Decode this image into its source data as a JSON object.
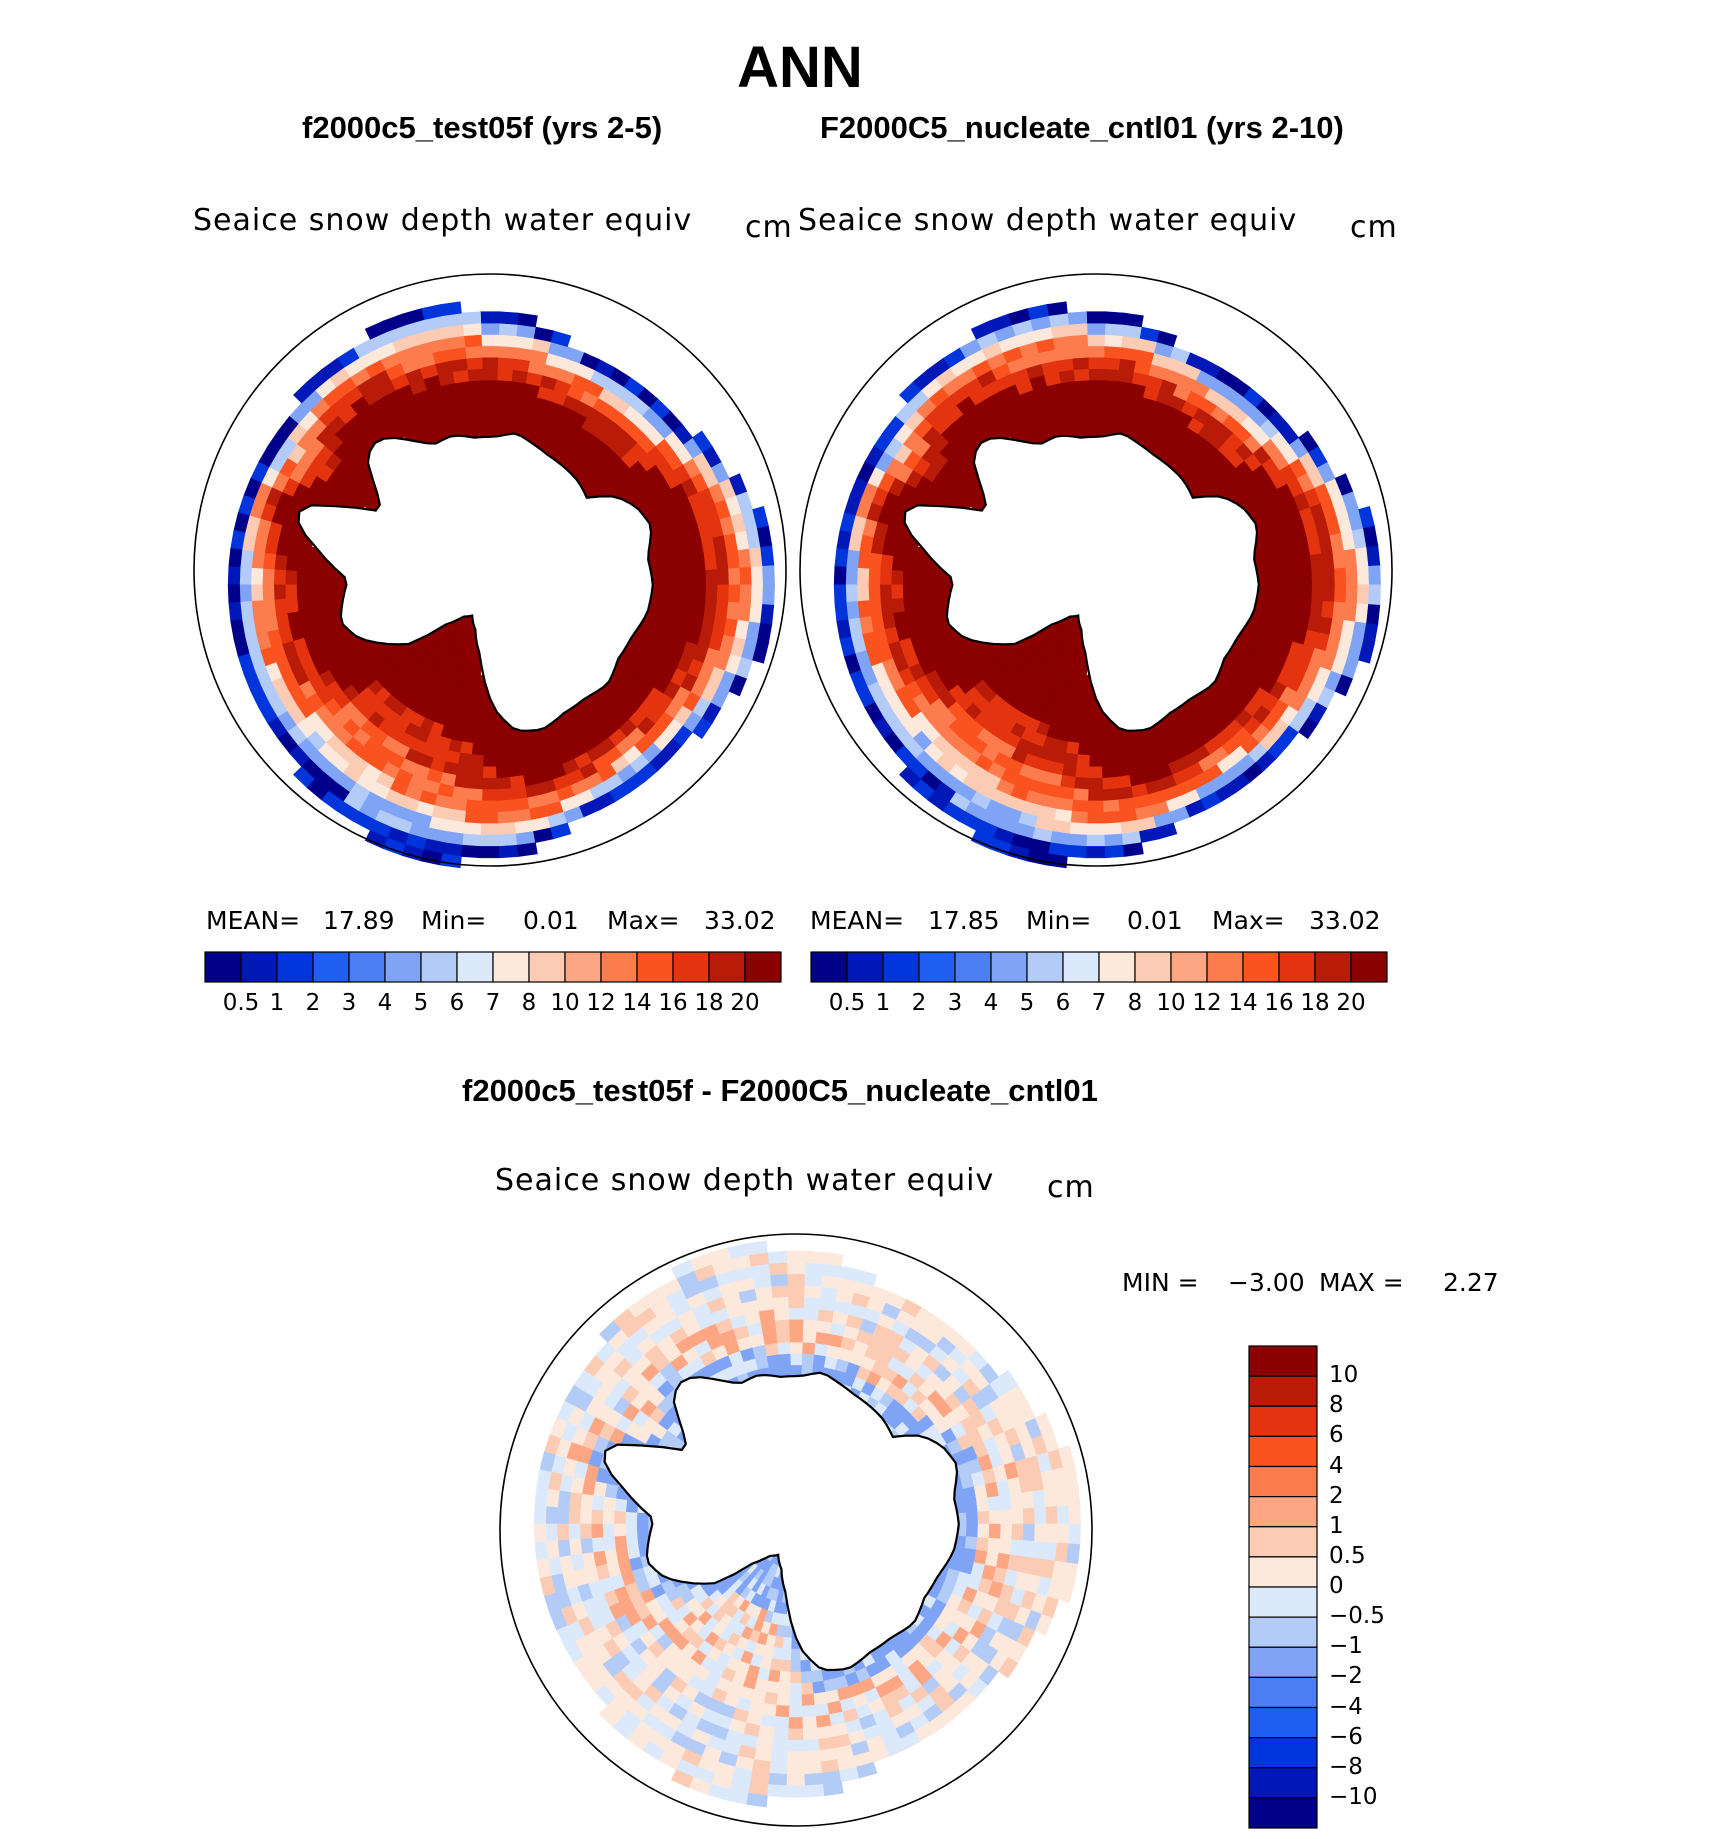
{
  "title": "ANN",
  "panels": [
    {
      "case_title": "f2000c5_test05f (yrs 2-5)",
      "variable": "Seaice snow depth water equiv",
      "units": "cm",
      "stats": {
        "mean_label": "MEAN=",
        "mean": "17.89",
        "min_label": "Min=",
        "min": "0.01",
        "max_label": "Max=",
        "max": "33.02"
      }
    },
    {
      "case_title": "F2000C5_nucleate_cntl01 (yrs 2-10)",
      "variable": "Seaice snow depth water equiv",
      "units": "cm",
      "stats": {
        "mean_label": "MEAN=",
        "mean": "17.85",
        "min_label": "Min=",
        "min": "0.01",
        "max_label": "Max=",
        "max": "33.02"
      }
    }
  ],
  "diff": {
    "case_title": "f2000c5_test05f - F2000C5_nucleate_cntl01",
    "variable": "Seaice snow depth water equiv",
    "units": "cm",
    "stats": {
      "min_label": "MIN =",
      "min": "−3.00",
      "max_label": "MAX =",
      "max": "2.27"
    }
  },
  "chart_data": [
    {
      "type": "heatmap",
      "projection": "south-polar-stereographic",
      "title": "f2000c5_test05f (yrs 2-5)",
      "variable": "Seaice snow depth water equiv",
      "units": "cm",
      "mean": 17.89,
      "min": 0.01,
      "max": 33.02,
      "colorbar": {
        "levels": [
          "0.5",
          "1",
          "2",
          "3",
          "4",
          "5",
          "6",
          "7",
          "8",
          "10",
          "12",
          "14",
          "16",
          "18",
          "20"
        ],
        "colors": [
          "#00008a",
          "#0018b8",
          "#0035dc",
          "#1f5ef0",
          "#4a7ef2",
          "#7fa4f5",
          "#b2cbf7",
          "#dce9fa",
          "#fde9dc",
          "#fccbb4",
          "#fca683",
          "#fc7c4e",
          "#fa5320",
          "#e4340f",
          "#b81c08",
          "#8b0000"
        ]
      }
    },
    {
      "type": "heatmap",
      "projection": "south-polar-stereographic",
      "title": "F2000C5_nucleate_cntl01 (yrs 2-10)",
      "variable": "Seaice snow depth water equiv",
      "units": "cm",
      "mean": 17.85,
      "min": 0.01,
      "max": 33.02,
      "colorbar": {
        "levels": [
          "0.5",
          "1",
          "2",
          "3",
          "4",
          "5",
          "6",
          "7",
          "8",
          "10",
          "12",
          "14",
          "16",
          "18",
          "20"
        ],
        "colors": [
          "#00008a",
          "#0018b8",
          "#0035dc",
          "#1f5ef0",
          "#4a7ef2",
          "#7fa4f5",
          "#b2cbf7",
          "#dce9fa",
          "#fde9dc",
          "#fccbb4",
          "#fca683",
          "#fc7c4e",
          "#fa5320",
          "#e4340f",
          "#b81c08",
          "#8b0000"
        ]
      }
    },
    {
      "type": "heatmap",
      "projection": "south-polar-stereographic",
      "title": "f2000c5_test05f - F2000C5_nucleate_cntl01",
      "variable": "Seaice snow depth water equiv",
      "units": "cm",
      "min": -3.0,
      "max": 2.27,
      "colorbar": {
        "levels": [
          "10",
          "8",
          "6",
          "4",
          "2",
          "1",
          "0.5",
          "0",
          "−0.5",
          "−1",
          "−2",
          "−4",
          "−6",
          "−8",
          "−10"
        ],
        "colors": [
          "#8b0000",
          "#b81c08",
          "#e4340f",
          "#fa5320",
          "#fc7c4e",
          "#fca683",
          "#fccbb4",
          "#fde9dc",
          "#dce9fa",
          "#b2cbf7",
          "#7fa4f5",
          "#4a7ef2",
          "#1f5ef0",
          "#0035dc",
          "#0018b8",
          "#00008a"
        ]
      }
    }
  ]
}
